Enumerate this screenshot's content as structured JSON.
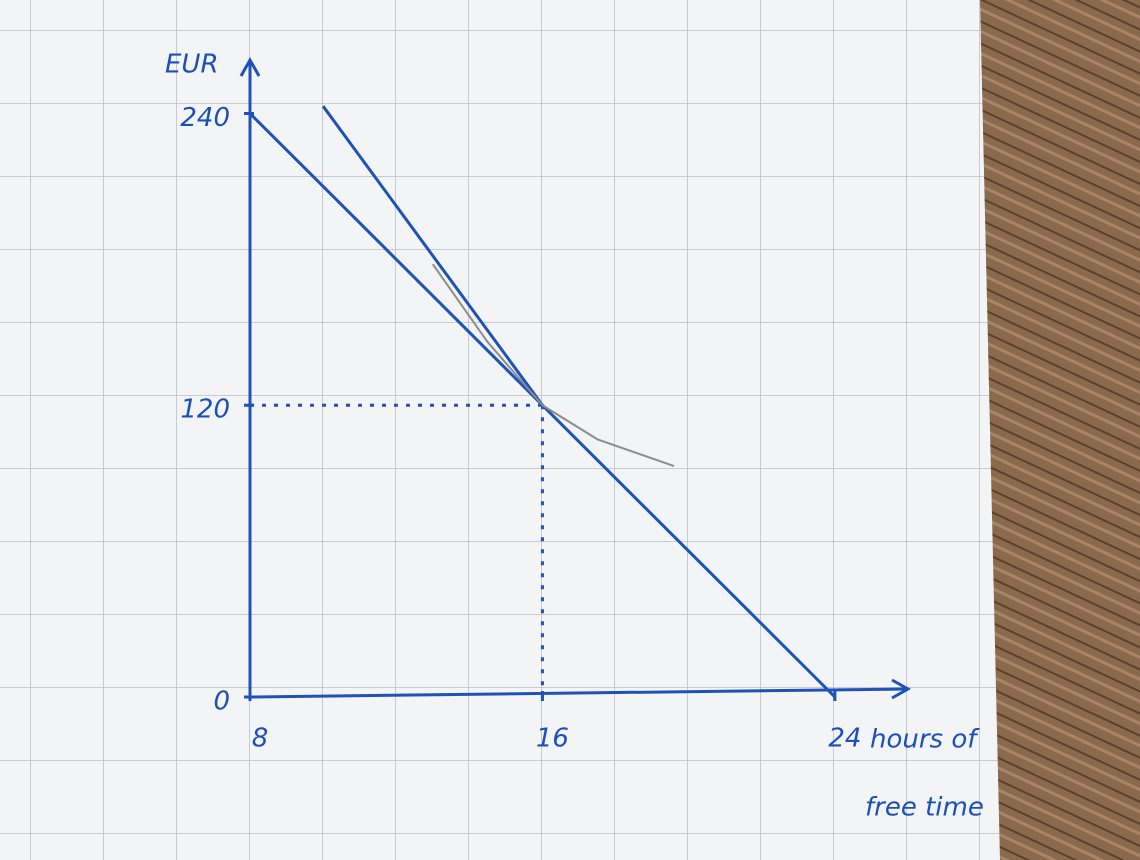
{
  "chart_data": {
    "type": "line",
    "ylabel": "EUR",
    "xlabel": [
      "hours of",
      "free time"
    ],
    "xlim": [
      8,
      26
    ],
    "ylim": [
      0,
      262
    ],
    "xticks": [
      8,
      16,
      24
    ],
    "yticks": [
      0,
      120,
      240
    ],
    "series": [
      {
        "color": "#1f52b8",
        "x": [
          8,
          24
        ],
        "values": [
          240,
          0
        ]
      },
      {
        "color": "#1f52b8",
        "x": [
          10,
          16
        ],
        "values": [
          243,
          120
        ]
      },
      {
        "color": "#8c8c8c",
        "x": [
          13,
          14.5,
          16,
          17.5,
          19.6
        ],
        "values": [
          178,
          146,
          120,
          106,
          95
        ]
      }
    ],
    "guide": {
      "x": 16,
      "y": 120,
      "color": "#1f52b8"
    }
  }
}
